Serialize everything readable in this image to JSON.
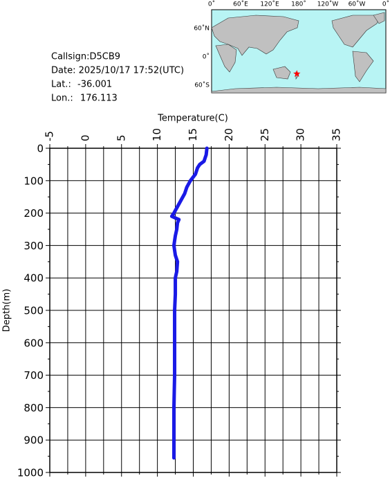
{
  "info": {
    "callsign": "Callsign:D5CB9",
    "date": "Date:  2025/10/17 17:52(UTC)",
    "lat_label": "Lat.:",
    "lat": -36.001,
    "lon_label": "Lon.:",
    "lon": 176.113,
    "map": {
      "lon_labels": [
        "0˚",
        "60˚E",
        "120˚E",
        "180˚",
        "120˚W",
        "60˚W",
        "0˚"
      ],
      "lat_labels": [
        "60˚N",
        "0˚",
        "60˚S"
      ]
    }
  },
  "chart_data": {
    "type": "line",
    "x_label": "Temperature(C)",
    "y_label": "Depth(m)",
    "y": [
      0,
      20,
      40,
      50,
      60,
      80,
      100,
      120,
      140,
      160,
      180,
      200,
      210,
      215,
      220,
      230,
      250,
      270,
      300,
      330,
      350,
      380,
      400,
      450,
      500,
      600,
      700,
      800,
      900,
      955
    ],
    "values": [
      16.9,
      16.8,
      16.5,
      15.9,
      15.6,
      15.3,
      14.6,
      14.1,
      13.8,
      13.3,
      12.8,
      12.3,
      12.0,
      12.5,
      13.0,
      12.8,
      12.7,
      12.5,
      12.3,
      12.5,
      12.8,
      12.7,
      12.5,
      12.5,
      12.4,
      12.4,
      12.4,
      12.3,
      12.3,
      12.3
    ],
    "color": "#1a1ae6",
    "xlim": [
      -5,
      35
    ],
    "xticks": [
      -5,
      0,
      5,
      10,
      15,
      20,
      25,
      30,
      35
    ],
    "xminorticks": [
      -2.5,
      2.5,
      7.5,
      12.5,
      17.5,
      22.5,
      27.5,
      32.5
    ],
    "ylim": [
      0,
      1000
    ],
    "yticks": [
      0,
      100,
      200,
      300,
      400,
      500,
      600,
      700,
      800,
      900,
      1000
    ],
    "yminorticks": [
      50,
      150,
      250,
      350,
      450,
      550,
      650,
      750,
      850,
      950
    ],
    "grid": true
  }
}
